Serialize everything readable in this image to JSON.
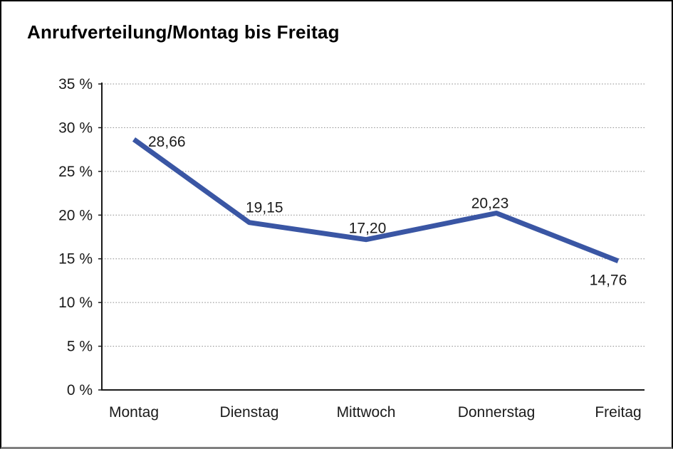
{
  "title": "Anrufverteilung/Montag bis Freitag",
  "chart_data": {
    "type": "line",
    "title": "Anrufverteilung/Montag bis Freitag",
    "categories": [
      "Montag",
      "Dienstag",
      "Mittwoch",
      "Donnerstag",
      "Freitag"
    ],
    "values": [
      28.66,
      19.15,
      17.2,
      20.23,
      14.76
    ],
    "value_labels": [
      "28,66",
      "19,15",
      "17,20",
      "20,23",
      "14,76"
    ],
    "y_ticks": [
      "0 %",
      "5 %",
      "10 %",
      "15 %",
      "20 %",
      "25 %",
      "30 %",
      "35 %"
    ],
    "ylim": [
      0,
      35
    ],
    "y_tick_step": 5,
    "xlabel": "",
    "ylabel": "",
    "grid": "horizontal-dotted",
    "legend": "none",
    "line_color": "#3A56A4",
    "grid_color": "#888888",
    "axis_color": "#1a1a1a",
    "text_color": "#1a1a1a"
  }
}
